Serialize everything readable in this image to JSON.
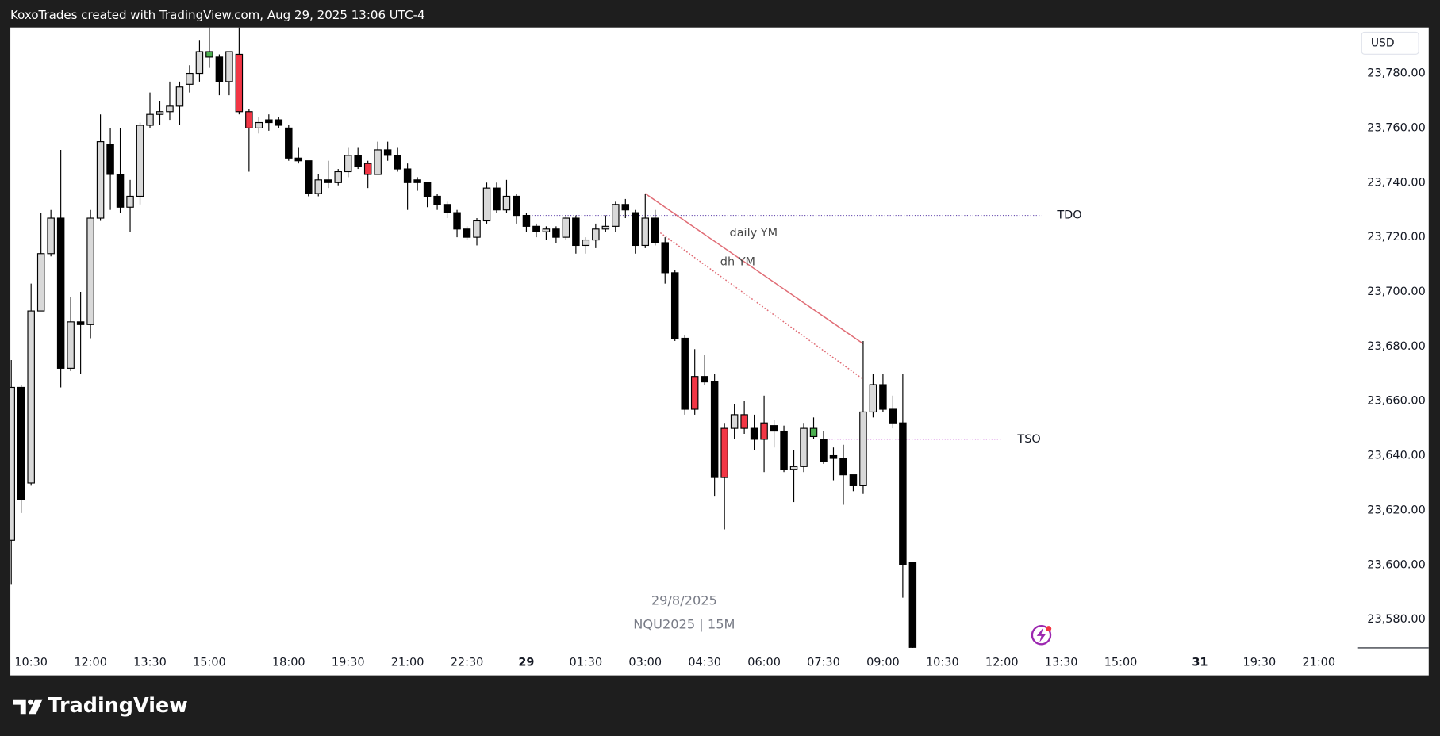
{
  "header": {
    "text": "KoxoTrades created with TradingView.com, Aug 29, 2025 13:06 UTC-4"
  },
  "footer": {
    "logo": "TradingView"
  },
  "chart_data": {
    "type": "candlestick",
    "currency": "USD",
    "watermark": [
      "29/8/2025",
      "NQU2025 | 15M"
    ],
    "up_color": "#d9d9d9",
    "down_color": "#000000",
    "wick_color": "#000000",
    "highlighted": [
      {
        "color": "#f23645",
        "indices": [
          23,
          24,
          36,
          69,
          72,
          74,
          76
        ]
      },
      {
        "color": "#4caf50",
        "indices": [
          20,
          81
        ]
      }
    ],
    "grid": false,
    "categories": [
      null,
      null,
      "10:30",
      null,
      null,
      null,
      null,
      null,
      "12:00",
      null,
      null,
      null,
      null,
      null,
      "13:30",
      null,
      null,
      null,
      null,
      null,
      "15:00",
      null,
      null,
      null,
      null,
      null,
      null,
      null,
      "18:00",
      null,
      null,
      null,
      null,
      null,
      "19:30",
      null,
      null,
      null,
      null,
      null,
      "21:00",
      null,
      null,
      null,
      null,
      null,
      "22:30",
      null,
      null,
      null,
      null,
      null,
      "29",
      null,
      null,
      null,
      null,
      null,
      "01:30",
      null,
      null,
      null,
      null,
      null,
      "03:00",
      null,
      null,
      null,
      null,
      null,
      "04:30",
      null,
      null,
      null,
      null,
      null,
      "06:00",
      null,
      null,
      null,
      null,
      null,
      "07:30",
      null,
      null,
      null,
      null,
      null,
      "09:00",
      null,
      null,
      null,
      null,
      null,
      "10:30",
      null,
      null,
      null,
      null,
      null,
      "12:00",
      null,
      null,
      null,
      null,
      null,
      "13:30",
      null,
      null,
      null,
      null,
      null,
      "15:00",
      null,
      null,
      null,
      null,
      null,
      null,
      null,
      "31",
      null,
      null,
      null,
      null,
      null,
      "19:30",
      null,
      null,
      null,
      null,
      null,
      "21:00"
    ],
    "open": [
      23609,
      23665,
      23630,
      23693,
      23714,
      23727,
      23672,
      23689,
      23688,
      23727,
      23754,
      23743,
      23731,
      23735,
      23761,
      23765,
      23766,
      23768,
      23776,
      23780,
      23786,
      23786,
      23777,
      23787,
      23766,
      23760,
      23763,
      23763,
      23760,
      23749,
      23748,
      23736,
      23741,
      23740,
      23744,
      23750,
      23747,
      23743,
      23752,
      23750,
      23745,
      23741,
      23740,
      23735,
      23732,
      23729,
      23723,
      23720,
      23726,
      23738,
      23730,
      23735,
      23728,
      23724,
      23722,
      23723,
      23720,
      23727,
      23717,
      23719,
      23723,
      23724,
      23732,
      23729,
      23717,
      23727,
      23718,
      23707,
      23683,
      23669,
      23669,
      23667,
      23650,
      23650,
      23655,
      23650,
      23652,
      23651,
      23649,
      23635,
      23636,
      23647,
      23646,
      23640,
      23639,
      23633,
      23629,
      23656,
      23666,
      23657,
      23652,
      23601,
      null,
      null,
      null,
      null,
      null,
      null,
      null,
      null,
      null,
      null,
      null,
      null,
      null,
      null,
      null,
      null,
      null,
      null,
      null,
      null,
      null,
      null,
      null,
      null,
      null,
      null,
      null,
      null,
      null,
      null,
      null,
      null,
      null,
      null,
      null,
      null,
      null,
      null,
      null,
      null,
      null
    ],
    "high": [
      23675,
      23666,
      23703,
      23729,
      23730,
      23752,
      23698,
      23700,
      23730,
      23765,
      23760,
      23760,
      23741,
      23762,
      23773,
      23770,
      23777,
      23777,
      23783,
      23792,
      23797,
      23787,
      23788,
      23797,
      23767,
      23764,
      23765,
      23764,
      23761,
      23753,
      23748,
      23743,
      23748,
      23745,
      23753,
      23753,
      23748,
      23755,
      23755,
      23753,
      23747,
      23742,
      23740,
      23736,
      23733,
      23730,
      23724,
      23727,
      23740,
      23740,
      23741,
      23736,
      23729,
      23725,
      23724,
      23724,
      23728,
      23728,
      23720,
      23725,
      23728,
      23733,
      23734,
      23730,
      23736,
      23730,
      23720,
      23708,
      23684,
      23679,
      23677,
      23670,
      23652,
      23659,
      23660,
      23655,
      23662,
      23653,
      23651,
      23642,
      23652,
      23654,
      23649,
      23643,
      23644,
      23633,
      23682,
      23670,
      23670,
      23662,
      23670,
      23601,
      null,
      null,
      null,
      null,
      null,
      null,
      null,
      null,
      null,
      null,
      null,
      null,
      null,
      null,
      null,
      null,
      null,
      null,
      null,
      null,
      null,
      null,
      null,
      null,
      null,
      null,
      null,
      null,
      null,
      null,
      null,
      null,
      null,
      null,
      null,
      null,
      null,
      null,
      null,
      null,
      null
    ],
    "low": [
      23593,
      23619,
      23629,
      23693,
      23713,
      23665,
      23671,
      23670,
      23683,
      23726,
      23730,
      23729,
      23722,
      23732,
      23760,
      23761,
      23763,
      23761,
      23773,
      23777,
      23782,
      23772,
      23772,
      23765,
      23744,
      23758,
      23759,
      23760,
      23748,
      23747,
      23735,
      23735,
      23738,
      23739,
      23742,
      23745,
      23738,
      23743,
      23748,
      23744,
      23730,
      23737,
      23731,
      23730,
      23727,
      23720,
      23719,
      23717,
      23725,
      23729,
      23729,
      23725,
      23722,
      23720,
      23719,
      23718,
      23719,
      23714,
      23714,
      23716,
      23722,
      23722,
      23727,
      23714,
      23716,
      23717,
      23703,
      23682,
      23655,
      23655,
      23666,
      23625,
      23613,
      23646,
      23648,
      23642,
      23634,
      23643,
      23634,
      23623,
      23634,
      23646,
      23637,
      23631,
      23622,
      23627,
      23626,
      23654,
      23656,
      23650,
      23588,
      23568,
      null,
      null,
      null,
      null,
      null,
      null,
      null,
      null,
      null,
      null,
      null,
      null,
      null,
      null,
      null,
      null,
      null,
      null,
      null,
      null,
      null,
      null,
      null,
      null,
      null,
      null,
      null,
      null,
      null,
      null,
      null,
      null,
      null,
      null,
      null,
      null,
      null,
      null,
      null,
      null,
      null
    ],
    "close": [
      23665,
      23624,
      23693,
      23714,
      23727,
      23672,
      23689,
      23688,
      23727,
      23755,
      23743,
      23731,
      23735,
      23761,
      23765,
      23766,
      23768,
      23775,
      23780,
      23788,
      23788,
      23777,
      23788,
      23766,
      23760,
      23762,
      23762,
      23761,
      23749,
      23748,
      23736,
      23741,
      23740,
      23744,
      23750,
      23746,
      23743,
      23752,
      23750,
      23745,
      23740,
      23740,
      23735,
      23732,
      23729,
      23723,
      23720,
      23726,
      23738,
      23730,
      23735,
      23728,
      23724,
      23722,
      23723,
      23720,
      23727,
      23717,
      23719,
      23723,
      23724,
      23732,
      23730,
      23717,
      23727,
      23718,
      23707,
      23683,
      23657,
      23657,
      23667,
      23632,
      23632,
      23655,
      23650,
      23646,
      23646,
      23649,
      23635,
      23636,
      23650,
      23650,
      23638,
      23639,
      23633,
      23629,
      23656,
      23666,
      23657,
      23652,
      23600,
      23568,
      null,
      null,
      null,
      null,
      null,
      null,
      null,
      null,
      null,
      null,
      null,
      null,
      null,
      null,
      null,
      null,
      null,
      null,
      null,
      null,
      null,
      null,
      null,
      null,
      null,
      null,
      null,
      null,
      null,
      null,
      null,
      null,
      null,
      null,
      null,
      null,
      null,
      null,
      null,
      null,
      null
    ],
    "ylim": [
      23569.6,
      23796.8
    ],
    "yticks": [
      {
        "value": 23580,
        "label": "23,580.00"
      },
      {
        "value": 23600,
        "label": "23,600.00"
      },
      {
        "value": 23620,
        "label": "23,620.00"
      },
      {
        "value": 23640,
        "label": "23,640.00"
      },
      {
        "value": 23660,
        "label": "23,660.00"
      },
      {
        "value": 23680,
        "label": "23,680.00"
      },
      {
        "value": 23700,
        "label": "23,700.00"
      },
      {
        "value": 23720,
        "label": "23,720.00"
      },
      {
        "value": 23740,
        "label": "23,740.00"
      },
      {
        "value": 23760,
        "label": "23,760.00"
      },
      {
        "value": 23780,
        "label": "23,780.00"
      }
    ],
    "hlines": [
      {
        "label": "TDO",
        "value": 23728,
        "from": 52,
        "to": 104,
        "color": "#6a4fb0"
      },
      {
        "label": "TSO",
        "value": 23646,
        "from": 82,
        "to": 100,
        "color": "#d57be0"
      }
    ],
    "trendlines": [
      {
        "label": "daily YM",
        "from": [
          64,
          23736
        ],
        "to": [
          86,
          23681
        ],
        "style": "solid",
        "color": "#e06c75"
      },
      {
        "label": "dh YM",
        "from": [
          65,
          23723
        ],
        "to": [
          86,
          23668
        ],
        "style": "dotted",
        "color": "#e06c75"
      }
    ]
  }
}
